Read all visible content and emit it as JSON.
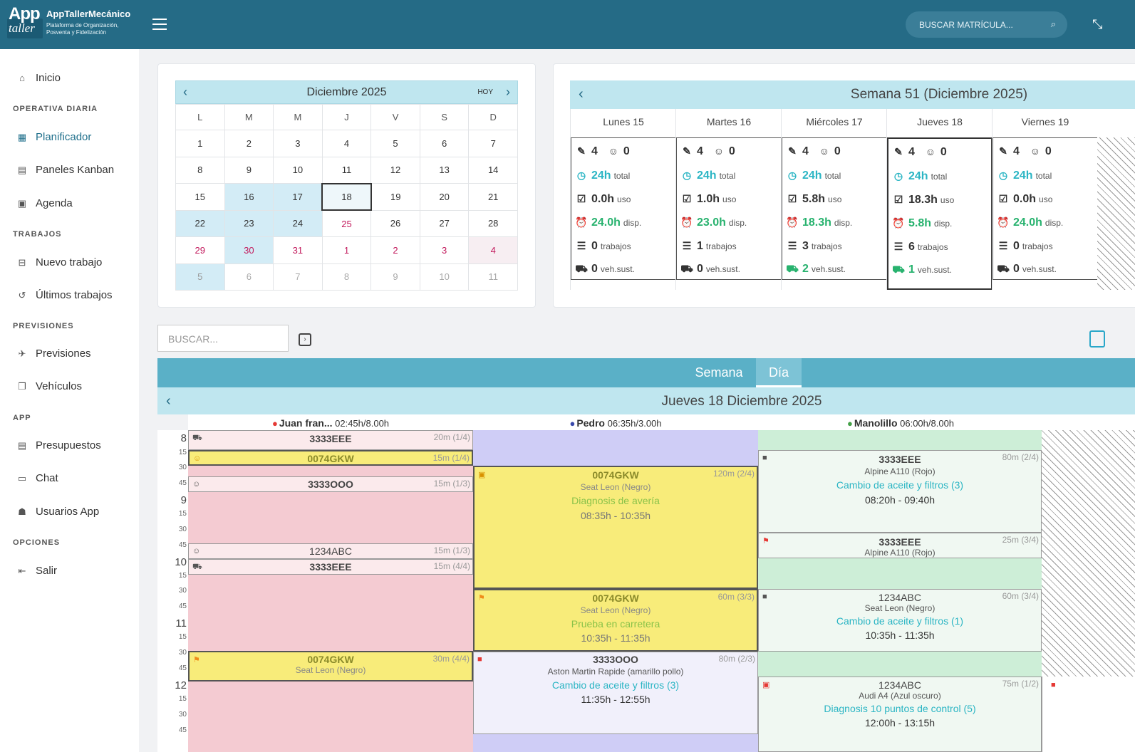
{
  "header": {
    "logo_app": "App",
    "logo_taller": "taller",
    "brand": "AppTallerMecánico",
    "tagline1": "Plataforma de Organización,",
    "tagline2": "Posventa y Fidelización",
    "search_placeholder": "BUSCAR MATRÍCULA...",
    "menu_icon": "hamburger-icon",
    "search_icon": "magnifier-icon",
    "collapse_icon": "compress-icon"
  },
  "sidebar": {
    "inicio": "Inicio",
    "sec_operativa": "OPERATIVA DIARIA",
    "planificador": "Planificador",
    "kanban": "Paneles Kanban",
    "agenda": "Agenda",
    "sec_trabajos": "TRABAJOS",
    "nuevo": "Nuevo trabajo",
    "ultimos": "Últimos trabajos",
    "sec_previsiones": "PREVISIONES",
    "previsiones": "Previsiones",
    "vehiculos": "Vehículos",
    "sec_app": "APP",
    "presupuestos": "Presupuestos",
    "chat": "Chat",
    "usuarios": "Usuarios App",
    "sec_opciones": "OPCIONES",
    "salir": "Salir"
  },
  "mini_calendar": {
    "title": "Diciembre 2025",
    "today": "HOY",
    "days": [
      "L",
      "M",
      "M",
      "J",
      "V",
      "S",
      "D"
    ],
    "weeks": [
      [
        "1",
        "2",
        "3",
        "4",
        "5",
        "6",
        "7"
      ],
      [
        "8",
        "9",
        "10",
        "11",
        "12",
        "13",
        "14"
      ],
      [
        "15",
        "16",
        "17",
        "18",
        "19",
        "20",
        "21"
      ],
      [
        "22",
        "23",
        "24",
        "25",
        "26",
        "27",
        "28"
      ],
      [
        "29",
        "30",
        "31",
        "1",
        "2",
        "3",
        "4"
      ],
      [
        "5",
        "6",
        "7",
        "8",
        "9",
        "10",
        "11"
      ]
    ]
  },
  "week": {
    "title": "Semana 51 (Diciembre 2025)",
    "days": [
      {
        "name": "Lunes 15",
        "mech": "4",
        "absent": "0",
        "total": "24h",
        "uso": "0.0h",
        "disp": "24.0h",
        "trabajos": "0",
        "veh": "0"
      },
      {
        "name": "Martes 16",
        "mech": "4",
        "absent": "0",
        "total": "24h",
        "uso": "1.0h",
        "disp": "23.0h",
        "trabajos": "1",
        "veh": "0"
      },
      {
        "name": "Miércoles 17",
        "mech": "4",
        "absent": "0",
        "total": "24h",
        "uso": "5.8h",
        "disp": "18.3h",
        "trabajos": "3",
        "veh": "2"
      },
      {
        "name": "Jueves 18",
        "mech": "4",
        "absent": "0",
        "total": "24h",
        "uso": "18.3h",
        "disp": "5.8h",
        "trabajos": "6",
        "veh": "1"
      },
      {
        "name": "Viernes 19",
        "mech": "4",
        "absent": "0",
        "total": "24h",
        "uso": "0.0h",
        "disp": "24.0h",
        "trabajos": "0",
        "veh": "0"
      }
    ],
    "lbl_total": "total",
    "lbl_uso": "uso",
    "lbl_disp": "disp.",
    "lbl_trabajos": "trabajos",
    "lbl_veh": "veh.sust."
  },
  "search": {
    "placeholder": "BUSCAR..."
  },
  "tabs": {
    "semana": "Semana",
    "dia": "Día"
  },
  "day": {
    "title": "Jueves 18 Diciembre 2025"
  },
  "mechanics": [
    {
      "name": "Juan fran...",
      "hours": "02:45h/8.00h"
    },
    {
      "name": "Pedro",
      "hours": "06:35h/3.00h"
    },
    {
      "name": "Manolillo",
      "hours": "06:00h/8.00h"
    }
  ],
  "hours": [
    "8",
    "15",
    "30",
    "45",
    "9",
    "15",
    "30",
    "45",
    "10",
    "15",
    "30",
    "45",
    "11",
    "15",
    "30",
    "45",
    "12",
    "15",
    "30",
    "45"
  ],
  "jobs": {
    "j1": {
      "plate": "3333EEE",
      "dur": "20m",
      "part": "(1/4)"
    },
    "j2": {
      "plate": "0074GKW",
      "dur": "15m",
      "part": "(1/4)"
    },
    "j3": {
      "plate": "3333OOO",
      "dur": "15m",
      "part": "(1/3)"
    },
    "j4": {
      "plate": "1234ABC",
      "dur": "15m",
      "part": "(1/3)"
    },
    "j5": {
      "plate": "3333EEE",
      "dur": "15m",
      "part": "(4/4)"
    },
    "j6": {
      "plate": "0074GKW",
      "desc": "Seat Leon (Negro)",
      "dur": "30m",
      "part": "(4/4)"
    },
    "p1": {
      "plate": "0074GKW",
      "desc": "Seat Leon (Negro)",
      "work": "Diagnosis de avería",
      "time": "08:35h - 10:35h",
      "dur": "120m",
      "part": "(2/4)"
    },
    "p2": {
      "plate": "0074GKW",
      "desc": "Seat Leon (Negro)",
      "work": "Prueba en carretera",
      "time": "10:35h - 11:35h",
      "dur": "60m",
      "part": "(3/3)"
    },
    "p3": {
      "plate": "3333OOO",
      "desc": "Aston Martin Rapide (amarillo pollo)",
      "work": "Cambio de aceite y filtros (3)",
      "time": "11:35h - 12:55h",
      "dur": "80m",
      "part": "(2/3)"
    },
    "m1": {
      "plate": "3333EEE",
      "desc": "Alpine A110 (Rojo)",
      "work": "Cambio de aceite y filtros (3)",
      "time": "08:20h - 09:40h",
      "dur": "80m",
      "part": "(2/4)"
    },
    "m2": {
      "plate": "3333EEE",
      "desc": "Alpine A110 (Rojo)",
      "dur": "25m",
      "part": "(3/4)"
    },
    "m3": {
      "plate": "1234ABC",
      "desc": "Seat Leon (Negro)",
      "work": "Cambio de aceite y filtros (1)",
      "time": "10:35h - 11:35h",
      "dur": "60m",
      "part": "(3/4)"
    },
    "m4": {
      "plate": "1234ABC",
      "desc": "Audi A4 (Azul oscuro)",
      "work": "Diagnosis 10 puntos de control (5)",
      "time": "12:00h - 13:15h",
      "dur": "75m",
      "part": "(1/2)"
    }
  }
}
